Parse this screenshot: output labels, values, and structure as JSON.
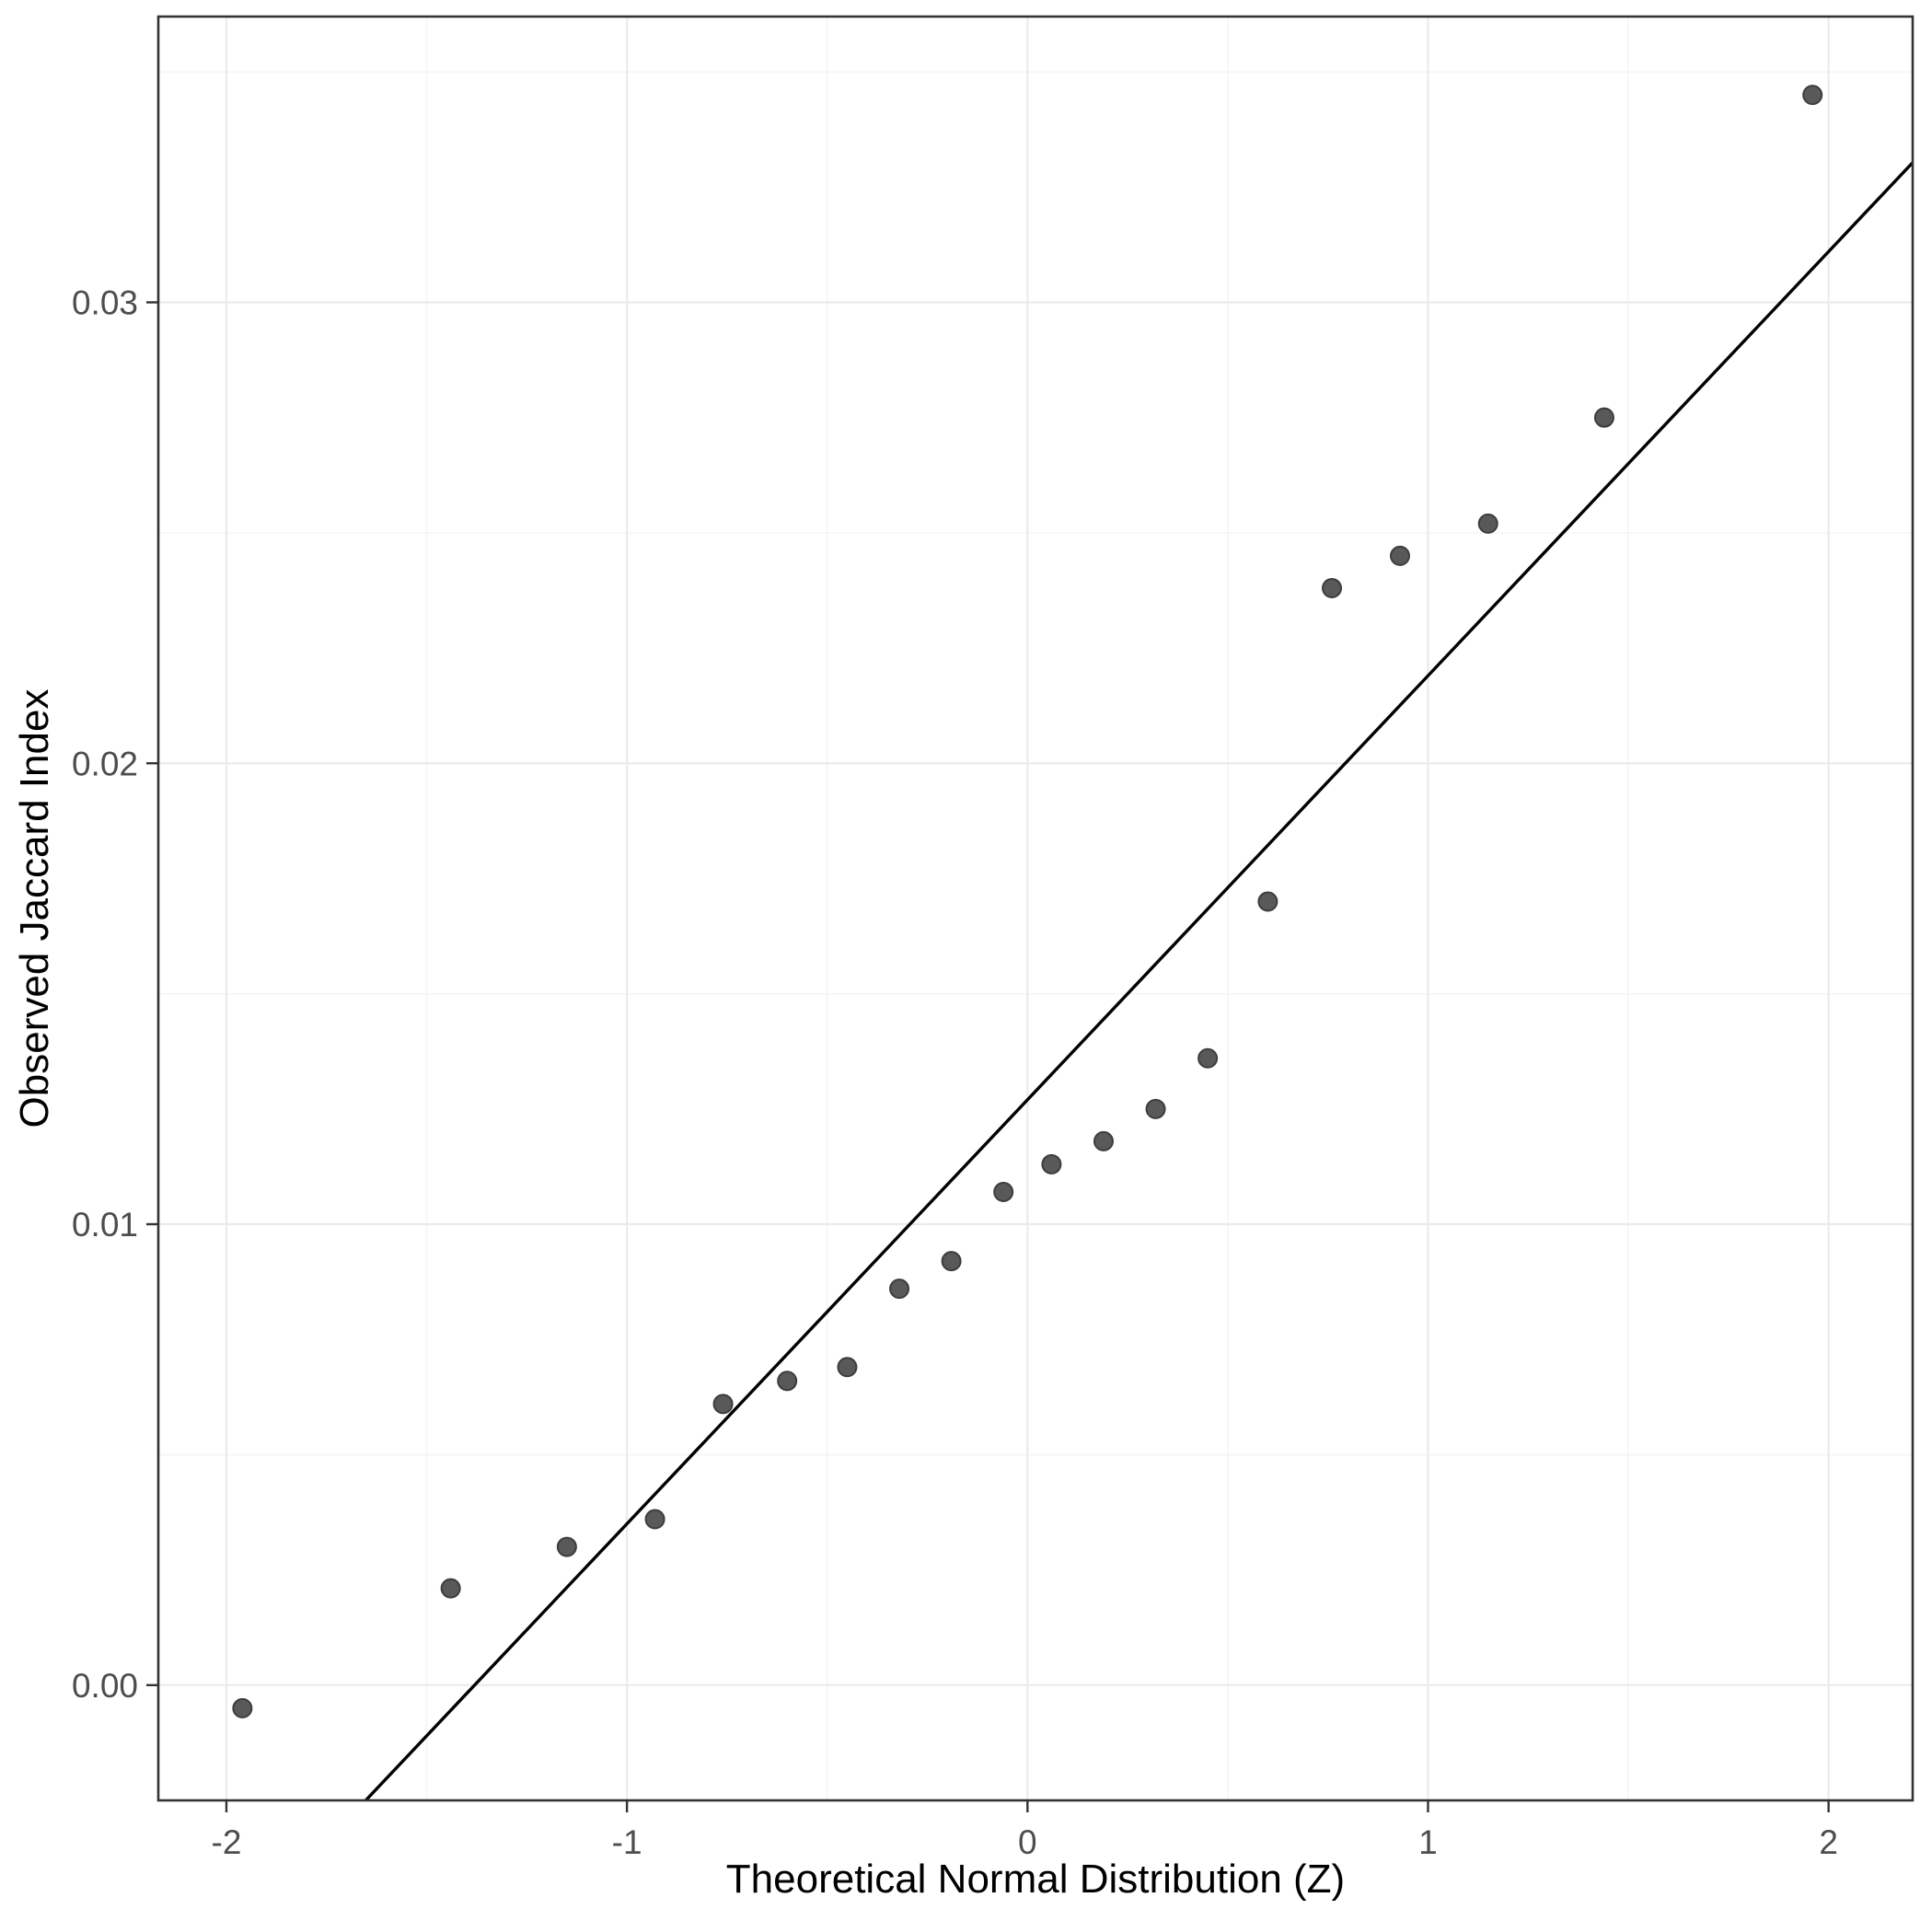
{
  "chart_data": {
    "type": "scatter",
    "title": "",
    "xlabel": "Theoretical Normal Distribution (Z)",
    "ylabel": "Observed Jaccard Index",
    "xlim": [
      -2.17,
      2.21
    ],
    "ylim": [
      -0.0025,
      0.0362
    ],
    "x_ticks": [
      -2,
      -1,
      0,
      1,
      2
    ],
    "x_tick_labels": [
      "-2",
      "-1",
      "0",
      "1",
      "2"
    ],
    "x_minor_ticks": [
      -1.5,
      -0.5,
      0.5,
      1.5
    ],
    "y_ticks": [
      0.0,
      0.01,
      0.02,
      0.03
    ],
    "y_tick_labels": [
      "0.00",
      "0.01",
      "0.02",
      "0.03"
    ],
    "y_minor_ticks": [
      0.005,
      0.015,
      0.025,
      0.035
    ],
    "grid": true,
    "legend": "none",
    "points": [
      [
        -1.96,
        -0.0005
      ],
      [
        -1.44,
        0.0021
      ],
      [
        -1.15,
        0.003
      ],
      [
        -0.93,
        0.0036
      ],
      [
        -0.76,
        0.0061
      ],
      [
        -0.6,
        0.0066
      ],
      [
        -0.45,
        0.0069
      ],
      [
        -0.32,
        0.0086
      ],
      [
        -0.19,
        0.0092
      ],
      [
        -0.06,
        0.0107
      ],
      [
        0.06,
        0.0113
      ],
      [
        0.19,
        0.0118
      ],
      [
        0.32,
        0.0125
      ],
      [
        0.45,
        0.0136
      ],
      [
        0.6,
        0.017
      ],
      [
        0.76,
        0.0238
      ],
      [
        0.93,
        0.0245
      ],
      [
        1.15,
        0.0252
      ],
      [
        1.44,
        0.0275
      ],
      [
        1.96,
        0.0345
      ]
    ],
    "ref_line": {
      "intercept": 0.0127,
      "slope": 0.0092
    },
    "colors": {
      "background": "#ffffff",
      "panel_border": "#333333",
      "grid_major": "#ebebeb",
      "grid_minor": "#f5f5f5",
      "point_fill": "#595959",
      "point_stroke": "#3d3d3d",
      "line": "#000000",
      "tick_mark": "#333333",
      "tick_text": "#4d4d4d",
      "axis_title": "#000000"
    }
  }
}
